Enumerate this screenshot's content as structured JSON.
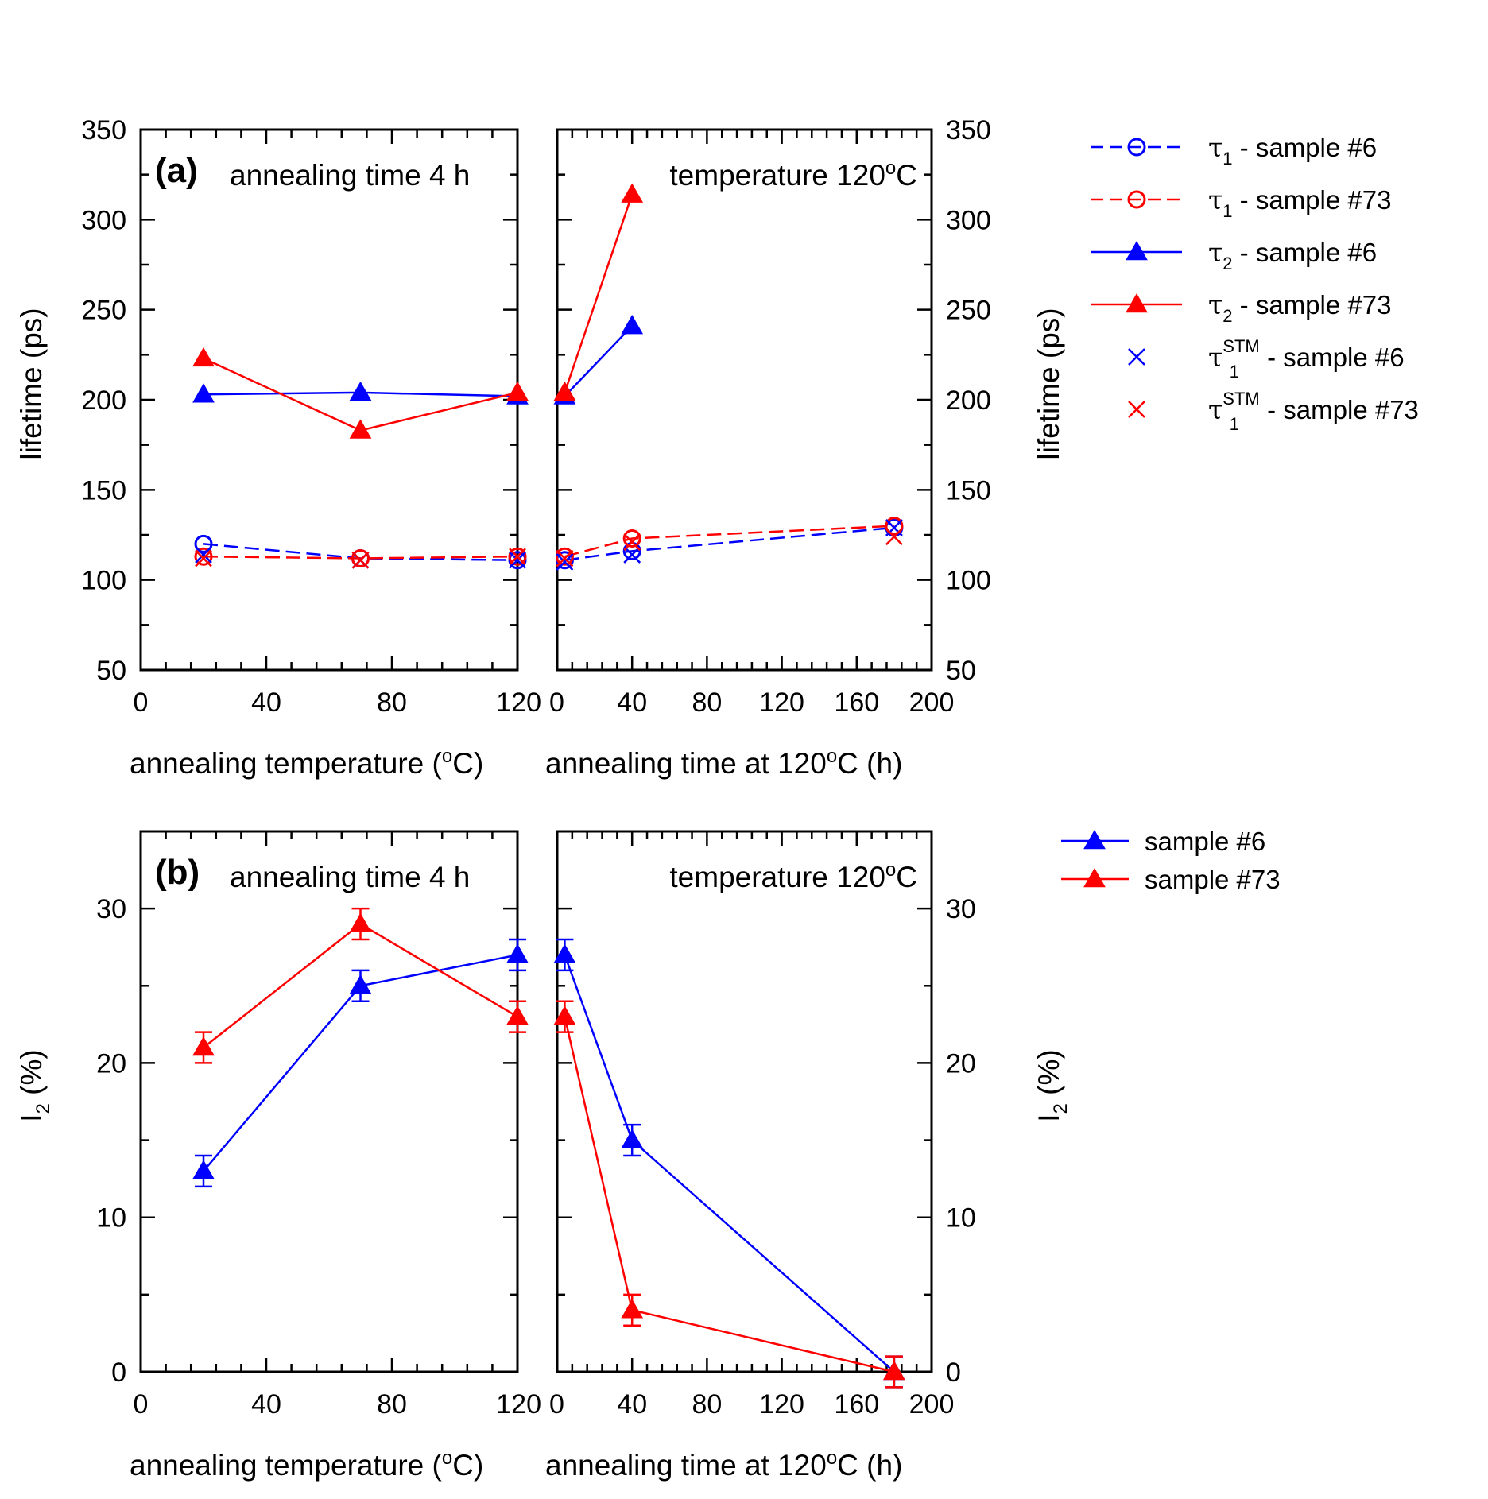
{
  "colors": {
    "blue": "#0000ff",
    "red": "#ff0000",
    "axis": "#000000"
  },
  "chart_data": [
    {
      "id": "a-left",
      "type": "line",
      "panel_label": "(a)",
      "annotation": "annealing time 4 h",
      "xlabel": "annealing temperature (",
      "xlabel_sup": "o",
      "xlabel_tail": "C)",
      "ylabel": "lifetime (ps)",
      "xlim": [
        0,
        120
      ],
      "ylim": [
        50,
        350
      ],
      "xticks": [
        "0",
        "40",
        "80",
        "120"
      ],
      "yticks": [
        "50",
        "100",
        "150",
        "200",
        "250",
        "300",
        "350"
      ],
      "series": [
        {
          "name": "τ1 - sample #6",
          "color": "blue",
          "marker": "circle",
          "dash": true,
          "x": [
            20,
            70,
            120
          ],
          "y": [
            120,
            112,
            111
          ]
        },
        {
          "name": "τ1 - sample #73",
          "color": "red",
          "marker": "circle",
          "dash": true,
          "x": [
            20,
            70,
            120
          ],
          "y": [
            113,
            112,
            113
          ]
        },
        {
          "name": "τ2 - sample #6",
          "color": "blue",
          "marker": "triangle",
          "dash": false,
          "x": [
            20,
            70,
            120
          ],
          "y": [
            203,
            204,
            202
          ]
        },
        {
          "name": "τ2 - sample #73",
          "color": "red",
          "marker": "triangle",
          "dash": false,
          "x": [
            20,
            70,
            120
          ],
          "y": [
            223,
            183,
            204
          ]
        },
        {
          "name": "τ1STM - sample #6",
          "color": "blue",
          "marker": "x",
          "dash": false,
          "nolines": true,
          "x": [
            20,
            70,
            120
          ],
          "y": [
            114,
            111,
            111
          ]
        },
        {
          "name": "τ1STM - sample #73",
          "color": "red",
          "marker": "x",
          "dash": false,
          "nolines": true,
          "x": [
            20,
            70,
            120
          ],
          "y": [
            112,
            111,
            113
          ]
        }
      ]
    },
    {
      "id": "a-right",
      "type": "line",
      "annotation": "temperature 120",
      "annotation_sup": "o",
      "annotation_tail": "C",
      "xlabel": "annealing time at 120",
      "xlabel_sup": "o",
      "xlabel_tail": "C (h)",
      "ylabel": "lifetime (ps)",
      "xlim": [
        0,
        200
      ],
      "ylim": [
        50,
        350
      ],
      "xticks": [
        "0",
        "40",
        "80",
        "120",
        "160",
        "200"
      ],
      "yticks": [
        "50",
        "100",
        "150",
        "200",
        "250",
        "300",
        "350"
      ],
      "series": [
        {
          "name": "τ1 - sample #6",
          "color": "blue",
          "marker": "circle",
          "dash": true,
          "x": [
            4,
            40,
            180
          ],
          "y": [
            111,
            116,
            129
          ]
        },
        {
          "name": "τ1 - sample #73",
          "color": "red",
          "marker": "circle",
          "dash": true,
          "x": [
            4,
            40,
            180
          ],
          "y": [
            113,
            123,
            130
          ]
        },
        {
          "name": "τ2 - sample #6",
          "color": "blue",
          "marker": "triangle",
          "dash": false,
          "x": [
            4,
            40
          ],
          "y": [
            202,
            241
          ]
        },
        {
          "name": "τ2 - sample #73",
          "color": "red",
          "marker": "triangle",
          "dash": false,
          "x": [
            4,
            40
          ],
          "y": [
            204,
            314
          ]
        },
        {
          "name": "τ1STM - sample #6",
          "color": "blue",
          "marker": "x",
          "nolines": true,
          "x": [
            4,
            40,
            180
          ],
          "y": [
            110,
            114,
            129
          ]
        },
        {
          "name": "τ1STM - sample #73",
          "color": "red",
          "marker": "x",
          "nolines": true,
          "x": [
            4,
            40,
            180
          ],
          "y": [
            112,
            121,
            124
          ]
        }
      ]
    },
    {
      "id": "b-left",
      "type": "line",
      "panel_label": "(b)",
      "annotation": "annealing time 4 h",
      "xlabel": "annealing temperature (",
      "xlabel_sup": "o",
      "xlabel_tail": "C)",
      "ylabel": "I",
      "ylabel_sub": "2",
      "ylabel_tail": " (%)",
      "xlim": [
        0,
        120
      ],
      "ylim": [
        0,
        35
      ],
      "xticks": [
        "0",
        "40",
        "80",
        "120"
      ],
      "yticks": [
        "0",
        "10",
        "20",
        "30"
      ],
      "series": [
        {
          "name": "sample #6",
          "color": "blue",
          "marker": "triangle",
          "dash": false,
          "x": [
            20,
            70,
            120
          ],
          "y": [
            13,
            25,
            27
          ],
          "err": [
            1,
            1,
            1
          ]
        },
        {
          "name": "sample #73",
          "color": "red",
          "marker": "triangle",
          "dash": false,
          "x": [
            20,
            70,
            120
          ],
          "y": [
            21,
            29,
            23
          ],
          "err": [
            1,
            1,
            1
          ]
        }
      ]
    },
    {
      "id": "b-right",
      "type": "line",
      "annotation": "temperature 120",
      "annotation_sup": "o",
      "annotation_tail": "C",
      "xlabel": "annealing time at 120",
      "xlabel_sup": "o",
      "xlabel_tail": "C (h)",
      "ylabel": "I",
      "ylabel_sub": "2",
      "ylabel_tail": " (%)",
      "xlim": [
        0,
        200
      ],
      "ylim": [
        0,
        35
      ],
      "xticks": [
        "0",
        "40",
        "80",
        "120",
        "160",
        "200"
      ],
      "yticks": [
        "0",
        "10",
        "20",
        "30"
      ],
      "series": [
        {
          "name": "sample #6",
          "color": "blue",
          "marker": "triangle",
          "dash": false,
          "x": [
            4,
            40,
            180
          ],
          "y": [
            27,
            15,
            0
          ],
          "err": [
            1,
            1,
            1
          ]
        },
        {
          "name": "sample #73",
          "color": "red",
          "marker": "triangle",
          "dash": false,
          "x": [
            4,
            40,
            180
          ],
          "y": [
            23,
            4,
            0
          ],
          "err": [
            1,
            1,
            1
          ]
        }
      ]
    }
  ],
  "legend_a": [
    {
      "sym": "τ",
      "sub": "1",
      "sup": "",
      "rest": " - sample #6",
      "color": "blue",
      "marker": "circle",
      "dash": true
    },
    {
      "sym": "τ",
      "sub": "1",
      "sup": "",
      "rest": " - sample #73",
      "color": "red",
      "marker": "circle",
      "dash": true
    },
    {
      "sym": "τ",
      "sub": "2",
      "sup": "",
      "rest": " - sample #6",
      "color": "blue",
      "marker": "triangle",
      "dash": false
    },
    {
      "sym": "τ",
      "sub": "2",
      "sup": "",
      "rest": " - sample #73",
      "color": "red",
      "marker": "triangle",
      "dash": false
    },
    {
      "sym": "τ",
      "sub": "1",
      "sup": "STM",
      "rest": " - sample #6",
      "color": "blue",
      "marker": "x",
      "noline": true
    },
    {
      "sym": "τ",
      "sub": "1",
      "sup": "STM",
      "rest": " - sample #73",
      "color": "red",
      "marker": "x",
      "noline": true
    }
  ],
  "legend_b": [
    {
      "label": "sample #6",
      "color": "blue",
      "marker": "triangle"
    },
    {
      "label": "sample #73",
      "color": "red",
      "marker": "triangle"
    }
  ]
}
